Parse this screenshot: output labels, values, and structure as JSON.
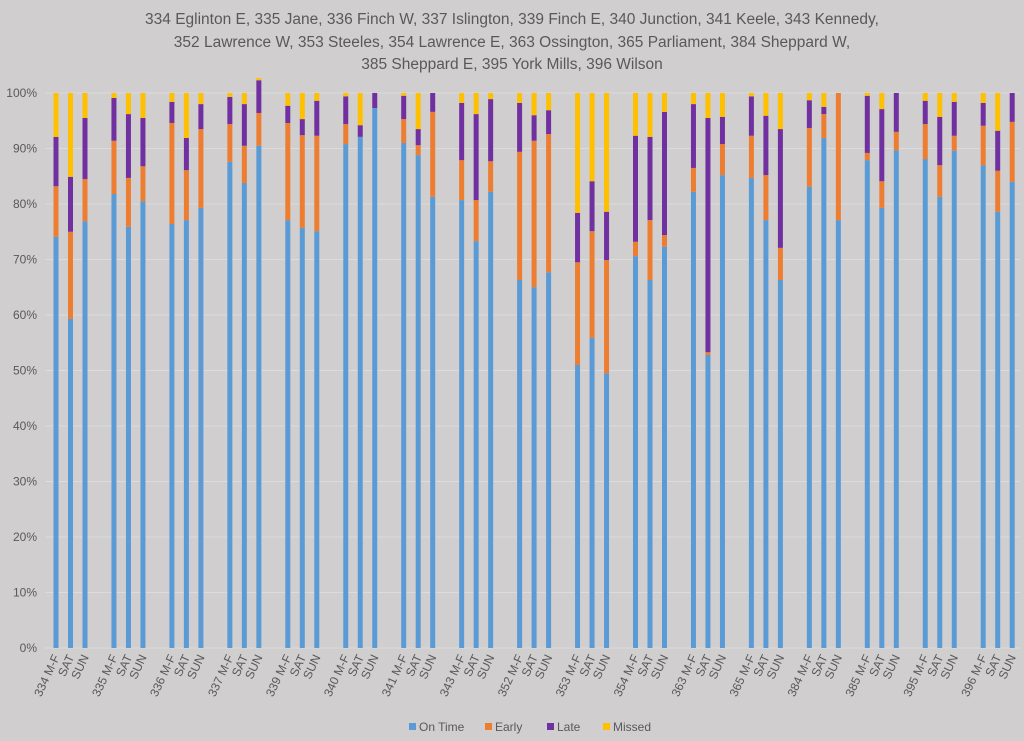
{
  "chart_data": {
    "type": "bar",
    "stacked": true,
    "percent": true,
    "title_lines": [
      "334 Eglinton E, 335 Jane, 336 Finch W, 337 Islington, 339 Finch E, 340 Junction, 341 Keele, 343 Kennedy,",
      "352 Lawrence W, 353 Steeles, 354 Lawrence E, 363 Ossington, 365 Parliament, 384 Sheppard W,",
      "385 Sheppard E, 395 York Mills, 396 Wilson"
    ],
    "xlabel": "",
    "ylabel": "",
    "ylim": [
      0,
      100
    ],
    "yticks": [
      "0%",
      "10%",
      "20%",
      "30%",
      "40%",
      "50%",
      "60%",
      "70%",
      "80%",
      "90%",
      "100%"
    ],
    "grid": true,
    "legend_position": "bottom",
    "groups": [
      "334",
      "335",
      "336",
      "337",
      "339",
      "340",
      "341",
      "343",
      "352",
      "353",
      "354",
      "363",
      "365",
      "384",
      "385",
      "395",
      "396"
    ],
    "categories": [
      "334 M-F",
      "SAT",
      "SUN",
      "335 M-F",
      "SAT",
      "SUN",
      "336 M-F",
      "SAT",
      "SUN",
      "337 M-F",
      "SAT",
      "SUN",
      "339 M-F",
      "SAT",
      "SUN",
      "340 M-F",
      "SAT",
      "SUN",
      "341 M-F",
      "SAT",
      "SUN",
      "343 M-F",
      "SAT",
      "SUN",
      "352 M-F",
      "SAT",
      "SUN",
      "353 M-F",
      "SAT",
      "SUN",
      "354 M-F",
      "SAT",
      "SUN",
      "363 M-F",
      "SAT",
      "SUN",
      "365 M-F",
      "SAT",
      "SUN",
      "384 M-F",
      "SAT",
      "SUN",
      "385 M-F",
      "SAT",
      "SUN",
      "395 M-F",
      "SAT",
      "SUN",
      "396 M-F",
      "SAT",
      "SUN"
    ],
    "series": [
      {
        "name": "On Time",
        "color": "#5b9bd5",
        "values": [
          74.1,
          59.3,
          76.9,
          81.8,
          75.9,
          80.5,
          76.4,
          77.1,
          79.3,
          87.6,
          83.8,
          90.5,
          77.1,
          75.7,
          75.1,
          90.8,
          92.1,
          97.3,
          91.0,
          88.8,
          81.3,
          80.7,
          73.3,
          82.2,
          66.3,
          65.0,
          67.7,
          51.0,
          55.9,
          49.5,
          70.6,
          66.3,
          72.3,
          82.2,
          52.8,
          85.2,
          84.7,
          77.1,
          66.3,
          83.1,
          91.9,
          77.1,
          87.9,
          79.3,
          89.7,
          88.1,
          81.3,
          89.6,
          87.0,
          78.6,
          84.0
        ]
      },
      {
        "name": "Early",
        "color": "#ed7d31",
        "values": [
          9.1,
          15.7,
          7.6,
          9.6,
          8.8,
          6.3,
          18.2,
          9.0,
          14.2,
          6.8,
          6.7,
          5.9,
          17.5,
          16.7,
          17.2,
          3.6,
          0.0,
          0.0,
          4.3,
          1.8,
          15.3,
          7.2,
          7.4,
          5.5,
          23.1,
          26.4,
          24.9,
          18.5,
          19.2,
          20.4,
          2.6,
          10.8,
          2.1,
          4.3,
          0.5,
          5.6,
          7.6,
          8.1,
          5.8,
          10.6,
          4.3,
          22.9,
          1.3,
          4.8,
          3.3,
          6.3,
          5.7,
          2.7,
          7.1,
          7.4,
          10.8
        ]
      },
      {
        "name": "Late",
        "color": "#7030a0",
        "values": [
          8.9,
          9.9,
          11.0,
          7.7,
          11.5,
          8.7,
          3.8,
          5.8,
          4.5,
          4.9,
          7.5,
          5.9,
          3.1,
          2.9,
          6.3,
          5.0,
          2.1,
          2.7,
          4.2,
          2.9,
          3.4,
          10.3,
          15.5,
          11.2,
          8.8,
          4.6,
          4.3,
          8.9,
          9.0,
          8.7,
          19.1,
          15.0,
          22.2,
          11.5,
          42.2,
          4.9,
          7.1,
          10.7,
          21.4,
          5.0,
          1.3,
          0.0,
          10.3,
          13.0,
          7.0,
          4.2,
          8.7,
          6.1,
          4.1,
          7.2,
          5.2
        ]
      },
      {
        "name": "Missed",
        "color": "#ffc000",
        "values": [
          7.9,
          15.1,
          4.5,
          0.9,
          3.8,
          4.5,
          1.6,
          8.1,
          2.0,
          0.7,
          2.0,
          0.4,
          2.3,
          4.7,
          1.4,
          0.6,
          5.8,
          0.0,
          0.5,
          6.5,
          0.0,
          1.8,
          3.8,
          1.1,
          1.8,
          4.0,
          3.1,
          21.6,
          15.9,
          21.4,
          7.7,
          7.9,
          3.4,
          2.0,
          4.5,
          4.3,
          0.6,
          4.1,
          6.5,
          1.3,
          2.5,
          0.0,
          0.5,
          2.9,
          0.0,
          1.4,
          4.3,
          1.6,
          1.8,
          6.8,
          0.0
        ]
      }
    ]
  }
}
